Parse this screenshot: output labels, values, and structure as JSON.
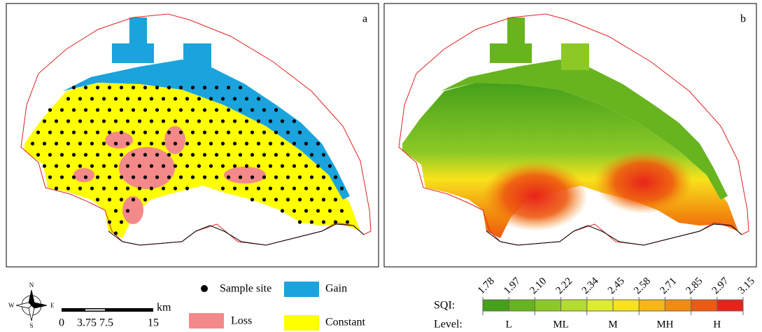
{
  "panels": [
    {
      "label": "a"
    },
    {
      "label": "b"
    }
  ],
  "legend_a": {
    "items": [
      {
        "label": "Sample site",
        "color": "#000000"
      },
      {
        "label": "Gain",
        "color": "#1ba3dd"
      },
      {
        "label": "Loss",
        "color": "#f4898a"
      },
      {
        "label": "Constant",
        "color": "#ffff00"
      }
    ]
  },
  "scale_bar": {
    "unit": "km",
    "labels": [
      "0",
      "3.75",
      "7.5",
      "15"
    ]
  },
  "compass": {
    "n": "N",
    "s": "S",
    "e": "E",
    "w": "W"
  },
  "sqi_legend": {
    "title": "SQI:",
    "breaks": [
      "1.78",
      "1.97",
      "2.10",
      "2.22",
      "2.34",
      "2.45",
      "2.58",
      "2.71",
      "2.85",
      "2.97",
      "3.15"
    ],
    "colors": [
      "#45a01a",
      "#68b41e",
      "#8dc926",
      "#b3dc2c",
      "#dfec2e",
      "#f7e31c",
      "#f6b614",
      "#f38b0e",
      "#ee5a10",
      "#e8231a"
    ],
    "level_title": "Level:",
    "levels": [
      "L",
      "ML",
      "M",
      "MH",
      "H"
    ]
  }
}
